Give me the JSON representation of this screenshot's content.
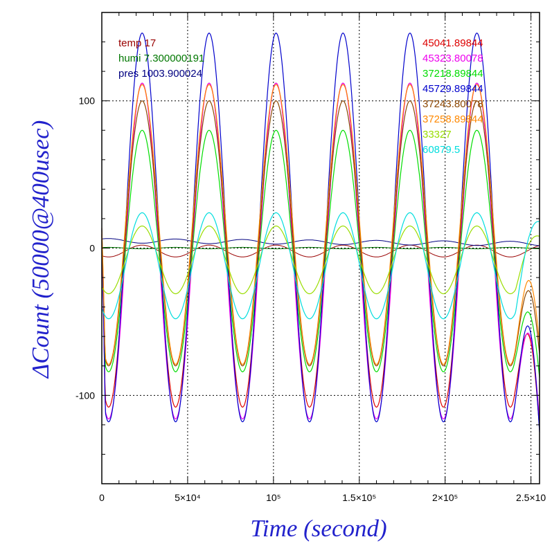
{
  "chart_data": {
    "type": "line",
    "xlabel": "Time (second)",
    "ylabel": "ΔCount (50000@400usec)",
    "xlim": [
      0,
      255000
    ],
    "ylim": [
      -160,
      160
    ],
    "x_ticks": [
      {
        "value": 0,
        "label": "0"
      },
      {
        "value": 50000,
        "label": "5×10⁴"
      },
      {
        "value": 100000,
        "label": "10⁵"
      },
      {
        "value": 150000,
        "label": "1.5×10⁵"
      },
      {
        "value": 200000,
        "label": "2×10⁵"
      },
      {
        "value": 250000,
        "label": "2.5×10"
      }
    ],
    "y_ticks": [
      {
        "value": 100,
        "label": "100"
      },
      {
        "value": 0,
        "label": "0"
      },
      {
        "value": -100,
        "label": "-100"
      }
    ],
    "grid": true,
    "legend_left": [
      {
        "text": "temp 17",
        "color": "#990000"
      },
      {
        "text": "humi 7.300000191",
        "color": "#007700"
      },
      {
        "text": "pres 1003.900024",
        "color": "#000080"
      }
    ],
    "series": [
      {
        "name": "45041.89844",
        "color": "#dd0000",
        "amplitude": 110,
        "offset": 2,
        "end_y": -123
      },
      {
        "name": "45323.80078",
        "color": "#ee00ee",
        "amplitude": 114,
        "offset": -2,
        "end_y": -118
      },
      {
        "name": "37218.89844",
        "color": "#00dd00",
        "amplitude": 82,
        "offset": -2,
        "end_y": -88
      },
      {
        "name": "45729.89844",
        "color": "#0000cc",
        "amplitude": 132,
        "offset": 14,
        "end_y": -125
      },
      {
        "name": "37243.80078",
        "color": "#8b4500",
        "amplitude": 90,
        "offset": 10,
        "end_y": -72
      },
      {
        "name": "37258.89844",
        "color": "#ff8800",
        "amplitude": 95,
        "offset": 16,
        "end_y": -65
      },
      {
        "name": "33327",
        "color": "#99dd00",
        "amplitude": 23,
        "offset": -8,
        "end_y": 8
      },
      {
        "name": "60879.5",
        "color": "#00dddd",
        "amplitude": 36,
        "offset": -12,
        "end_y": 18
      }
    ],
    "env_series": [
      {
        "name": "temp",
        "color": "#990000",
        "amplitude": 8,
        "offset": -2,
        "phase": 3.14159
      },
      {
        "name": "humi",
        "color": "#007700",
        "amplitude": 1,
        "offset": 0,
        "phase": 0
      },
      {
        "name": "pres",
        "color": "#000080",
        "amplitude": 3,
        "offset": 5,
        "phase": 0
      }
    ],
    "period": 39000,
    "trough_x": 4000
  }
}
